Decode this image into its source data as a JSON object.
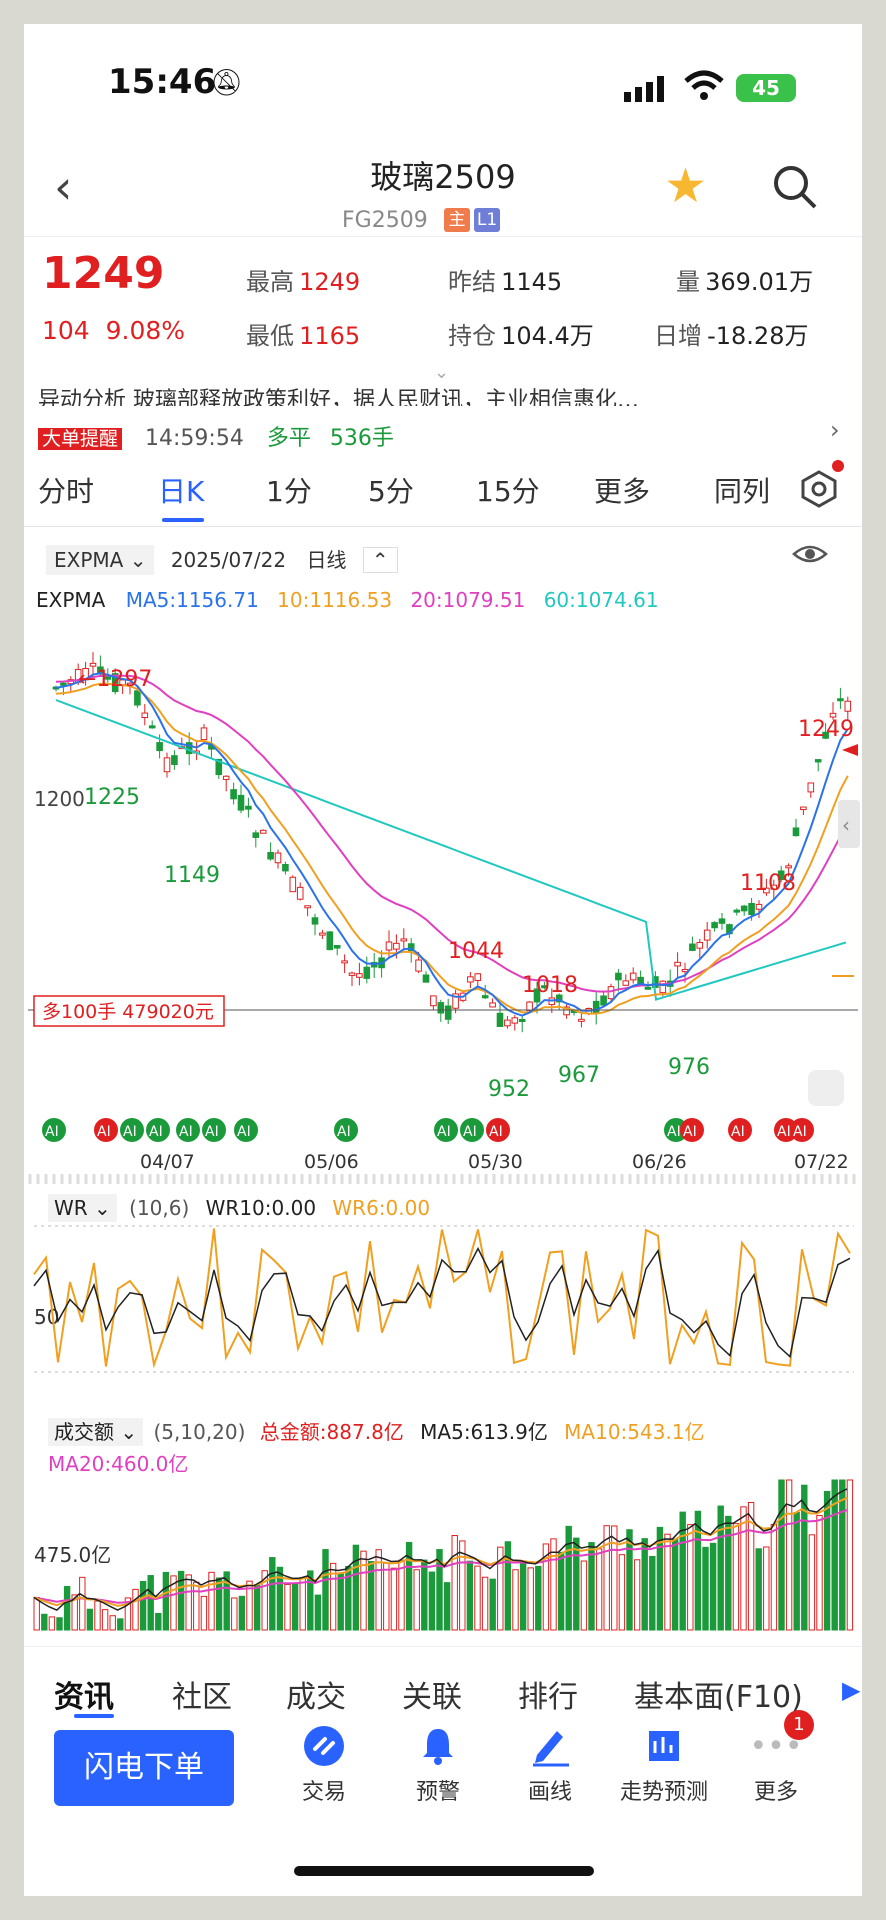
{
  "status": {
    "time": "15:46",
    "battery": "45"
  },
  "header": {
    "title": "玻璃2509",
    "code": "FG2509",
    "tag_main": "主",
    "tag_level": "L1"
  },
  "quote": {
    "price": "1249",
    "change": "104",
    "change_pct": "9.08%",
    "high_label": "最高",
    "high": "1249",
    "low_label": "最低",
    "low": "1165",
    "prev_label": "昨结",
    "prev": "1145",
    "oi_label": "持仓",
    "oi": "104.4万",
    "vol_label": "量",
    "vol": "369.01万",
    "daily_inc_label": "日增",
    "daily_inc": "-18.28万"
  },
  "ticker": {
    "line1": "异动分析  玻璃部释放政策利好，据人民财讯，主业相信惠化…",
    "line2_tag": "大单提醒",
    "line2_time": "14:59:54",
    "line2_type": "多平",
    "line2_qty": "536手"
  },
  "period_tabs": [
    "分时",
    "日K",
    "1分",
    "5分",
    "15分",
    "更多",
    "同列"
  ],
  "toolbar": {
    "indicator": "EXPMA",
    "date": "2025/07/22",
    "period": "日线"
  },
  "expma_legend": {
    "name": "EXPMA",
    "ma5": "MA5:1156.71",
    "ma10": "10:1116.53",
    "ma20": "20:1079.51",
    "ma60": "60:1074.61"
  },
  "colors": {
    "up": "#e02020",
    "down": "#1a9a3a",
    "ma5": "#2a73e8",
    "ma10": "#f0a020",
    "ma20": "#e040c0",
    "ma60": "#20c8c0",
    "accent": "#2962ff"
  },
  "price_labels": {
    "high": "←1297",
    "l1225": "1225",
    "l1200": "1200",
    "l1149": "1149",
    "l1044": "1044",
    "l1018": "1018",
    "l952": "952",
    "l967": "967",
    "l976": "976",
    "l1108": "1108",
    "l1249": "1249"
  },
  "big_order": "多100手 479020元",
  "x_dates": [
    "04/07",
    "05/06",
    "05/30",
    "06/26",
    "07/22"
  ],
  "wr": {
    "name": "WR",
    "params": "(10,6)",
    "wr10": "WR10:0.00",
    "wr6": "WR6:0.00",
    "mid": "50"
  },
  "vol_legend": {
    "name": "成交额",
    "params": "(5,10,20)",
    "total": "总金额:887.8亿",
    "ma5": "MA5:613.9亿",
    "ma10": "MA10:543.1亿",
    "ma20": "MA20:460.0亿",
    "scale": "475.0亿"
  },
  "bottom_tabs": [
    "资讯",
    "社区",
    "成交",
    "关联",
    "排行",
    "基本面(F10)"
  ],
  "bottom_nav": {
    "order": "闪电下单",
    "items": [
      "交易",
      "预警",
      "画线",
      "走势预测",
      "更多"
    ],
    "badge": "1"
  },
  "ai_tag": "AI"
}
